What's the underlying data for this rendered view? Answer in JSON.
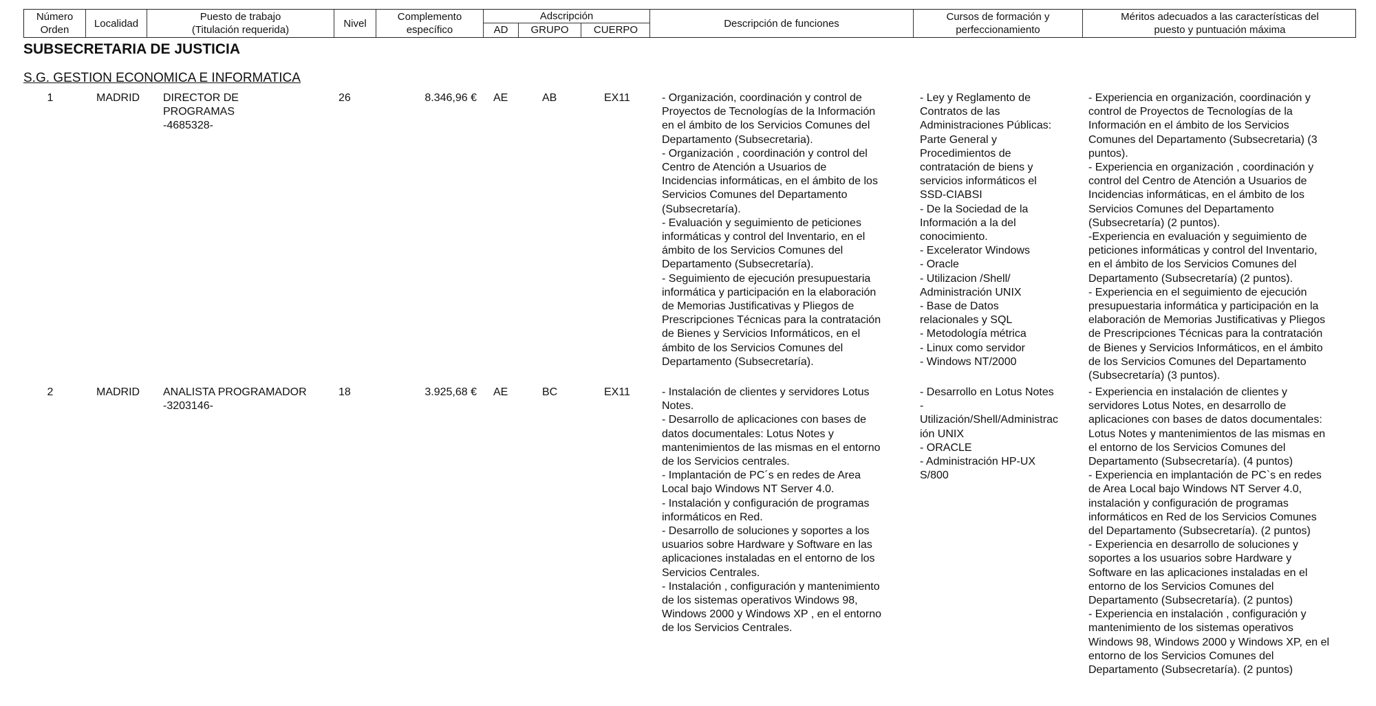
{
  "header": {
    "numero": [
      "Número",
      "Orden"
    ],
    "localidad": "Localidad",
    "puesto": [
      "Puesto de trabajo",
      "(Titulación requerida)"
    ],
    "nivel": "Nivel",
    "complemento": [
      "Complemento",
      "específico"
    ],
    "adscripcion": "Adscripción",
    "ad": "AD",
    "grupo": "GRUPO",
    "cuerpo": "CUERPO",
    "descripcion": "Descripción de funciones",
    "cursos": [
      "Cursos de formación y",
      "perfeccionamiento"
    ],
    "meritos": [
      "Méritos adecuados a las características del",
      "puesto y puntuación máxima"
    ]
  },
  "section_title": "SUBSECRETARIA DE JUSTICIA",
  "subsection_title": "S.G. GESTION ECONOMICA E INFORMATICA",
  "rows": [
    {
      "numero": "1",
      "localidad": "MADRID",
      "puesto": [
        "DIRECTOR DE",
        "PROGRAMAS",
        "-4685328-"
      ],
      "nivel": "26",
      "complemento": "8.346,96 €",
      "ad": "AE",
      "grupo": "AB",
      "cuerpo": "EX11",
      "descripcion": [
        "- Organización, coordinación y control de",
        "Proyectos de Tecnologías de la Información",
        "en el ámbito de los Servicios Comunes del",
        "Departamento (Subsecretaria).",
        "- Organización , coordinación y control del",
        "Centro de Atención a Usuarios de",
        "Incidencias informáticas, en el ámbito de los",
        "Servicios Comunes del Departamento",
        "(Subsecretaría).",
        "- Evaluación y seguimiento de peticiones",
        "informáticas y control del Inventario, en el",
        "ámbito de los Servicios Comunes del",
        "Departamento (Subsecretaría).",
        "- Seguimiento de ejecución presupuestaria",
        "informática y participación en la elaboración",
        "de Memorias Justificativas y Pliegos de",
        "Prescripciones Técnicas para la contratación",
        "de Bienes y Servicios Informáticos, en el",
        "ámbito de los Servicios Comunes del",
        "Departamento (Subsecretaría)."
      ],
      "cursos": [
        "- Ley y Reglamento de",
        "Contratos de las",
        "Administraciones Públicas:",
        "Parte General y",
        "Procedimientos de",
        "contratación de biens y",
        "servicios informáticos el",
        "SSD-CIABSI",
        "- De la Sociedad de la",
        "Información a la del",
        "conocimiento.",
        "- Excelerator Windows",
        "- Oracle",
        "-  Utilizacion /Shell/",
        "Administración UNIX",
        "- Base de Datos",
        "relacionales y SQL",
        "- Metodología métrica",
        "- Linux como servidor",
        "- Windows NT/2000"
      ],
      "meritos": [
        "- Experiencia en organización, coordinación y",
        "control de Proyectos de Tecnologías de la",
        "Información  en el ámbito de los Servicios",
        "Comunes del Departamento (Subsecretaria) (3",
        "puntos).",
        "- Experiencia en organización , coordinación y",
        "control del Centro de Atención a Usuarios de",
        "Incidencias informáticas, en el ámbito de los",
        "Servicios Comunes del Departamento",
        "(Subsecretaría) (2 puntos).",
        "-Experiencia en evaluación y seguimiento de",
        "peticiones informáticas y control del Inventario,",
        "en el ámbito de los Servicios Comunes del",
        "Departamento (Subsecretaría) (2 puntos).",
        "- Experiencia en el seguimiento de ejecución",
        "presupuestaria informática y participación en la",
        "elaboración de Memorias Justificativas y Pliegos",
        "de Prescripciones Técnicas para la contratación",
        "de Bienes y Servicios Informáticos, en el ámbito",
        "de los Servicios Comunes del Departamento",
        "(Subsecretaría) (3 puntos)."
      ]
    },
    {
      "numero": "2",
      "localidad": "MADRID",
      "puesto": [
        "ANALISTA PROGRAMADOR",
        "-3203146-"
      ],
      "nivel": "18",
      "complemento": "3.925,68 €",
      "ad": "AE",
      "grupo": "BC",
      "cuerpo": "EX11",
      "descripcion": [
        "- Instalación de clientes y servidores Lotus",
        "Notes.",
        "- Desarrollo de aplicaciones con bases de",
        "datos documentales: Lotus Notes y",
        "mantenimientos de las mismas en el entorno",
        "de los Servicios centrales.",
        "- Implantación de PC´s en redes de Area",
        "Local bajo Windows NT Server 4.0.",
        "- Instalación y configuración de programas",
        "informáticos en Red.",
        "- Desarrollo de soluciones y soportes a los",
        "usuarios sobre Hardware y Software en las",
        "aplicaciones instaladas en el entorno de los",
        "Servicios Centrales.",
        "- Instalación , configuración y mantenimiento",
        "de los sistemas operativos Windows 98,",
        "Windows 2000 y Windows XP , en el entorno",
        "de los Servicios Centrales."
      ],
      "cursos": [
        "- Desarrollo en Lotus Notes",
        "-",
        "Utilización/Shell/Administrac",
        "ión UNIX",
        "- ORACLE",
        "-  Administración HP-UX",
        "S/800"
      ],
      "meritos": [
        "- Experiencia en instalación de clientes y",
        "servidores Lotus Notes, en desarrollo de",
        "aplicaciones con bases de datos documentales:",
        "Lotus Notes y mantenimientos de las mismas en",
        "el entorno de los Servicios Comunes del",
        "Departamento (Subsecretaría). (4 puntos)",
        "- Experiencia en implantación de PC`s en redes",
        "de Area Local bajo Windows NT Server 4.0,",
        "instalación y configuración de programas",
        "informáticos en Red de los Servicios Comunes",
        "del Departamento (Subsecretaría). (2 puntos)",
        "- Experiencia en desarrollo de soluciones y",
        "soportes a los usuarios sobre Hardware y",
        "Software en las aplicaciones instaladas en el",
        "entorno de los Servicios Comunes del",
        "Departamento (Subsecretaría). (2 puntos)",
        "- Experiencia en instalación , configuración y",
        "mantenimiento de los sistemas operativos",
        "Windows 98, Windows 2000 y Windows XP, en el",
        "entorno de los Servicios Comunes del",
        "Departamento (Subsecretaría). (2 puntos)"
      ]
    }
  ]
}
